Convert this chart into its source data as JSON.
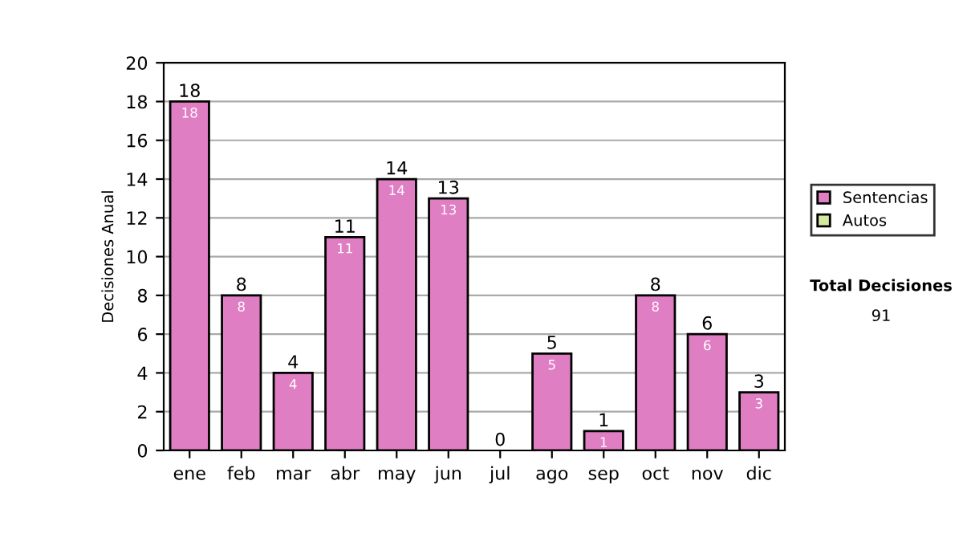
{
  "chart_data": {
    "type": "bar",
    "ylabel": "Decisiones Anual",
    "categories": [
      "ene",
      "feb",
      "mar",
      "abr",
      "may",
      "jun",
      "jul",
      "ago",
      "sep",
      "oct",
      "nov",
      "dic"
    ],
    "series": [
      {
        "name": "Sentencias",
        "color": "#e07ec4",
        "values": [
          18,
          8,
          4,
          11,
          14,
          13,
          0,
          5,
          1,
          8,
          6,
          3
        ],
        "value_labels": [
          "18",
          "8",
          "4",
          "11",
          "14",
          "13",
          null,
          "5",
          "1",
          "8",
          "6",
          "3"
        ]
      },
      {
        "name": "Autos",
        "color": "#d4e8a0",
        "values": [
          null,
          null,
          null,
          null,
          null,
          null,
          null,
          null,
          null,
          null,
          null,
          null
        ]
      }
    ],
    "stacked": true,
    "totals": [
      "18",
      "8",
      "4",
      "11",
      "14",
      "13",
      "0",
      "5",
      "1",
      "8",
      "6",
      "3"
    ],
    "ylim": [
      0,
      20
    ],
    "yticks": [
      0,
      2,
      4,
      6,
      8,
      10,
      12,
      14,
      16,
      18,
      20
    ],
    "grid": "y",
    "legend": "right",
    "annotations": [
      "Total Decisiones",
      "91"
    ]
  }
}
